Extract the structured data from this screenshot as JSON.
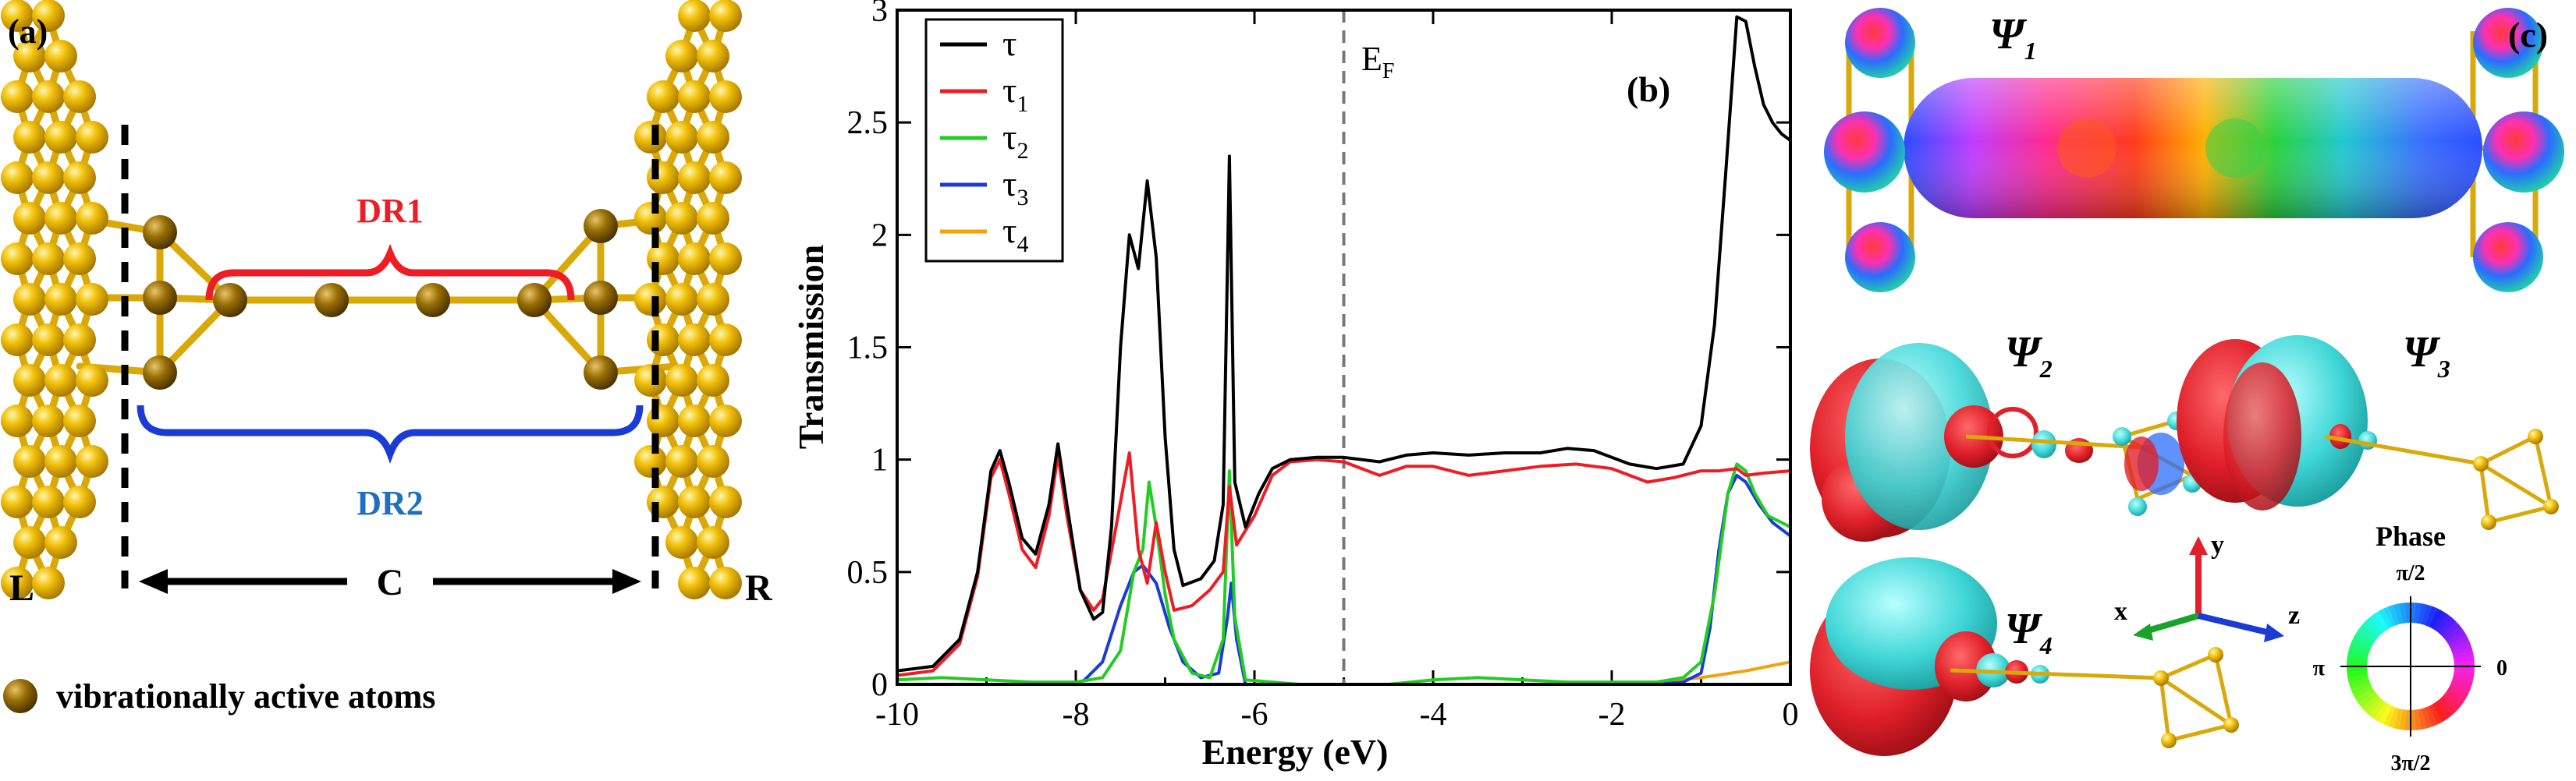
{
  "panel_a": {
    "label": "(a)",
    "left_label": "L",
    "center_label": "C",
    "right_label": "R",
    "region1": "DR1",
    "region2": "DR2",
    "legend_text": "vibrationally active atoms",
    "colors": {
      "gold": "#f2c20c",
      "bronze": "#9a6f06",
      "dr1": "#ee1c24",
      "dr2": "#1b3bd6",
      "dr2_text": "#1f6fc0"
    }
  },
  "panel_b": {
    "label": "(b)",
    "fermi_label": "E",
    "fermi_sub": "F",
    "chart_data": {
      "type": "line",
      "title": "",
      "xlabel": "Energy (eV)",
      "ylabel": "Transmission",
      "xlim": [
        -10,
        0
      ],
      "ylim": [
        0,
        3
      ],
      "xticks": [
        -10,
        -8,
        -6,
        -4,
        -2,
        0
      ],
      "yticks": [
        0,
        0.5,
        1,
        1.5,
        2,
        2.5,
        3
      ],
      "xtick_labels": [
        "-10",
        "-8",
        "-6",
        "-4",
        "-2",
        "0"
      ],
      "ytick_labels": [
        "0",
        "0.5",
        "1",
        "1.5",
        "2",
        "2.5",
        "3"
      ],
      "fermi_energy": -5,
      "legend_position": "top-left",
      "series": [
        {
          "name": "τ",
          "symbol": "τ",
          "sub": "",
          "color": "#000000",
          "points": [
            [
              -10,
              0.06
            ],
            [
              -9.6,
              0.08
            ],
            [
              -9.3,
              0.2
            ],
            [
              -9.1,
              0.5
            ],
            [
              -8.95,
              0.95
            ],
            [
              -8.85,
              1.04
            ],
            [
              -8.75,
              0.9
            ],
            [
              -8.6,
              0.65
            ],
            [
              -8.45,
              0.58
            ],
            [
              -8.3,
              0.8
            ],
            [
              -8.2,
              1.07
            ],
            [
              -8.1,
              0.8
            ],
            [
              -7.95,
              0.42
            ],
            [
              -7.8,
              0.29
            ],
            [
              -7.7,
              0.32
            ],
            [
              -7.6,
              0.7
            ],
            [
              -7.5,
              1.5
            ],
            [
              -7.4,
              2.0
            ],
            [
              -7.3,
              1.85
            ],
            [
              -7.2,
              2.24
            ],
            [
              -7.1,
              1.9
            ],
            [
              -7.0,
              1.1
            ],
            [
              -6.9,
              0.6
            ],
            [
              -6.8,
              0.44
            ],
            [
              -6.6,
              0.47
            ],
            [
              -6.45,
              0.55
            ],
            [
              -6.35,
              0.8
            ],
            [
              -6.28,
              2.35
            ],
            [
              -6.22,
              0.9
            ],
            [
              -6.1,
              0.7
            ],
            [
              -5.95,
              0.85
            ],
            [
              -5.8,
              0.96
            ],
            [
              -5.6,
              1.0
            ],
            [
              -5.3,
              1.01
            ],
            [
              -5.0,
              1.01
            ],
            [
              -4.6,
              0.99
            ],
            [
              -4.3,
              1.02
            ],
            [
              -4.0,
              1.03
            ],
            [
              -3.6,
              1.02
            ],
            [
              -3.2,
              1.03
            ],
            [
              -2.8,
              1.03
            ],
            [
              -2.5,
              1.05
            ],
            [
              -2.2,
              1.04
            ],
            [
              -1.8,
              0.98
            ],
            [
              -1.5,
              0.96
            ],
            [
              -1.2,
              0.98
            ],
            [
              -1.0,
              1.15
            ],
            [
              -0.85,
              1.6
            ],
            [
              -0.72,
              2.3
            ],
            [
              -0.6,
              2.97
            ],
            [
              -0.5,
              2.95
            ],
            [
              -0.4,
              2.75
            ],
            [
              -0.3,
              2.58
            ],
            [
              -0.2,
              2.5
            ],
            [
              -0.1,
              2.45
            ],
            [
              0,
              2.42
            ]
          ]
        },
        {
          "name": "τ1",
          "symbol": "τ",
          "sub": "1",
          "color": "#ee1c24",
          "points": [
            [
              -10,
              0.04
            ],
            [
              -9.6,
              0.06
            ],
            [
              -9.3,
              0.18
            ],
            [
              -9.1,
              0.48
            ],
            [
              -8.95,
              0.92
            ],
            [
              -8.85,
              1.0
            ],
            [
              -8.75,
              0.85
            ],
            [
              -8.6,
              0.6
            ],
            [
              -8.45,
              0.52
            ],
            [
              -8.3,
              0.75
            ],
            [
              -8.2,
              1.02
            ],
            [
              -8.1,
              0.75
            ],
            [
              -7.95,
              0.42
            ],
            [
              -7.8,
              0.33
            ],
            [
              -7.7,
              0.38
            ],
            [
              -7.55,
              0.7
            ],
            [
              -7.4,
              1.03
            ],
            [
              -7.3,
              0.6
            ],
            [
              -7.2,
              0.45
            ],
            [
              -7.1,
              0.72
            ],
            [
              -7.0,
              0.5
            ],
            [
              -6.9,
              0.33
            ],
            [
              -6.7,
              0.35
            ],
            [
              -6.5,
              0.42
            ],
            [
              -6.35,
              0.5
            ],
            [
              -6.28,
              0.88
            ],
            [
              -6.2,
              0.62
            ],
            [
              -6.0,
              0.75
            ],
            [
              -5.8,
              0.93
            ],
            [
              -5.6,
              0.99
            ],
            [
              -5.3,
              1.0
            ],
            [
              -5.0,
              0.99
            ],
            [
              -4.6,
              0.93
            ],
            [
              -4.3,
              0.97
            ],
            [
              -4.0,
              0.97
            ],
            [
              -3.6,
              0.93
            ],
            [
              -3.2,
              0.95
            ],
            [
              -2.8,
              0.97
            ],
            [
              -2.4,
              0.98
            ],
            [
              -2.0,
              0.96
            ],
            [
              -1.6,
              0.9
            ],
            [
              -1.3,
              0.92
            ],
            [
              -1.0,
              0.95
            ],
            [
              -0.8,
              0.95
            ],
            [
              -0.6,
              0.96
            ],
            [
              -0.5,
              0.93
            ],
            [
              -0.3,
              0.94
            ],
            [
              0,
              0.95
            ]
          ]
        },
        {
          "name": "τ2",
          "symbol": "τ",
          "sub": "2",
          "color": "#22cc22",
          "points": [
            [
              -10,
              0.02
            ],
            [
              -9.5,
              0.03
            ],
            [
              -9.0,
              0.02
            ],
            [
              -8.5,
              0.01
            ],
            [
              -8.0,
              0.01
            ],
            [
              -7.7,
              0.03
            ],
            [
              -7.5,
              0.15
            ],
            [
              -7.35,
              0.5
            ],
            [
              -7.25,
              0.6
            ],
            [
              -7.18,
              0.9
            ],
            [
              -7.1,
              0.7
            ],
            [
              -7.0,
              0.4
            ],
            [
              -6.9,
              0.2
            ],
            [
              -6.7,
              0.05
            ],
            [
              -6.5,
              0.03
            ],
            [
              -6.35,
              0.2
            ],
            [
              -6.28,
              0.95
            ],
            [
              -6.22,
              0.3
            ],
            [
              -6.1,
              0.02
            ],
            [
              -5.5,
              0.0
            ],
            [
              -5.0,
              0.0
            ],
            [
              -4.5,
              0.0
            ],
            [
              -4.0,
              0.02
            ],
            [
              -3.5,
              0.03
            ],
            [
              -3.0,
              0.02
            ],
            [
              -2.5,
              0.01
            ],
            [
              -2.0,
              0.01
            ],
            [
              -1.5,
              0.01
            ],
            [
              -1.2,
              0.03
            ],
            [
              -1.0,
              0.1
            ],
            [
              -0.85,
              0.4
            ],
            [
              -0.7,
              0.85
            ],
            [
              -0.6,
              0.98
            ],
            [
              -0.5,
              0.95
            ],
            [
              -0.4,
              0.85
            ],
            [
              -0.25,
              0.75
            ],
            [
              0,
              0.7
            ]
          ]
        },
        {
          "name": "τ3",
          "symbol": "τ",
          "sub": "3",
          "color": "#1b3bd6",
          "points": [
            [
              -10,
              0.0
            ],
            [
              -9.0,
              0.0
            ],
            [
              -8.0,
              0.0
            ],
            [
              -7.9,
              0.02
            ],
            [
              -7.7,
              0.1
            ],
            [
              -7.5,
              0.35
            ],
            [
              -7.35,
              0.5
            ],
            [
              -7.25,
              0.53
            ],
            [
              -7.1,
              0.45
            ],
            [
              -6.95,
              0.25
            ],
            [
              -6.8,
              0.1
            ],
            [
              -6.6,
              0.03
            ],
            [
              -6.4,
              0.05
            ],
            [
              -6.3,
              0.3
            ],
            [
              -6.26,
              0.45
            ],
            [
              -6.2,
              0.2
            ],
            [
              -6.1,
              0.0
            ],
            [
              -5.5,
              0.0
            ],
            [
              -5.0,
              0.0
            ],
            [
              -4.0,
              0.0
            ],
            [
              -3.0,
              0.0
            ],
            [
              -2.0,
              0.0
            ],
            [
              -1.5,
              0.0
            ],
            [
              -1.2,
              0.01
            ],
            [
              -1.0,
              0.05
            ],
            [
              -0.9,
              0.25
            ],
            [
              -0.8,
              0.6
            ],
            [
              -0.7,
              0.85
            ],
            [
              -0.6,
              0.93
            ],
            [
              -0.5,
              0.9
            ],
            [
              -0.35,
              0.8
            ],
            [
              -0.2,
              0.72
            ],
            [
              0,
              0.66
            ]
          ]
        },
        {
          "name": "τ4",
          "symbol": "τ",
          "sub": "4",
          "color": "#f5a10b",
          "points": [
            [
              -10,
              0.0
            ],
            [
              -6.0,
              0.0
            ],
            [
              -5.0,
              0.0
            ],
            [
              -4.0,
              0.0
            ],
            [
              -3.0,
              0.0
            ],
            [
              -2.0,
              0.0
            ],
            [
              -1.5,
              0.01
            ],
            [
              -1.0,
              0.03
            ],
            [
              -0.5,
              0.06
            ],
            [
              0,
              0.1
            ]
          ]
        }
      ]
    }
  },
  "panel_c": {
    "label": "(c)",
    "psi_symbol": "Ψ",
    "psi1_sub": "1",
    "psi2_sub": "2",
    "psi3_sub": "3",
    "psi4_sub": "4",
    "axis_x": "x",
    "axis_y": "y",
    "axis_z": "z",
    "phase_title": "Phase",
    "phase_top": "π/2",
    "phase_left": "π",
    "phase_right": "0",
    "phase_bottom": "3π/2",
    "colors": {
      "lobe_red": "#e0202a",
      "lobe_cyan": "#3fd6d6",
      "axis_x": "#e0202a",
      "axis_y": "#1aa32a",
      "axis_z": "#1b3bd6"
    }
  }
}
